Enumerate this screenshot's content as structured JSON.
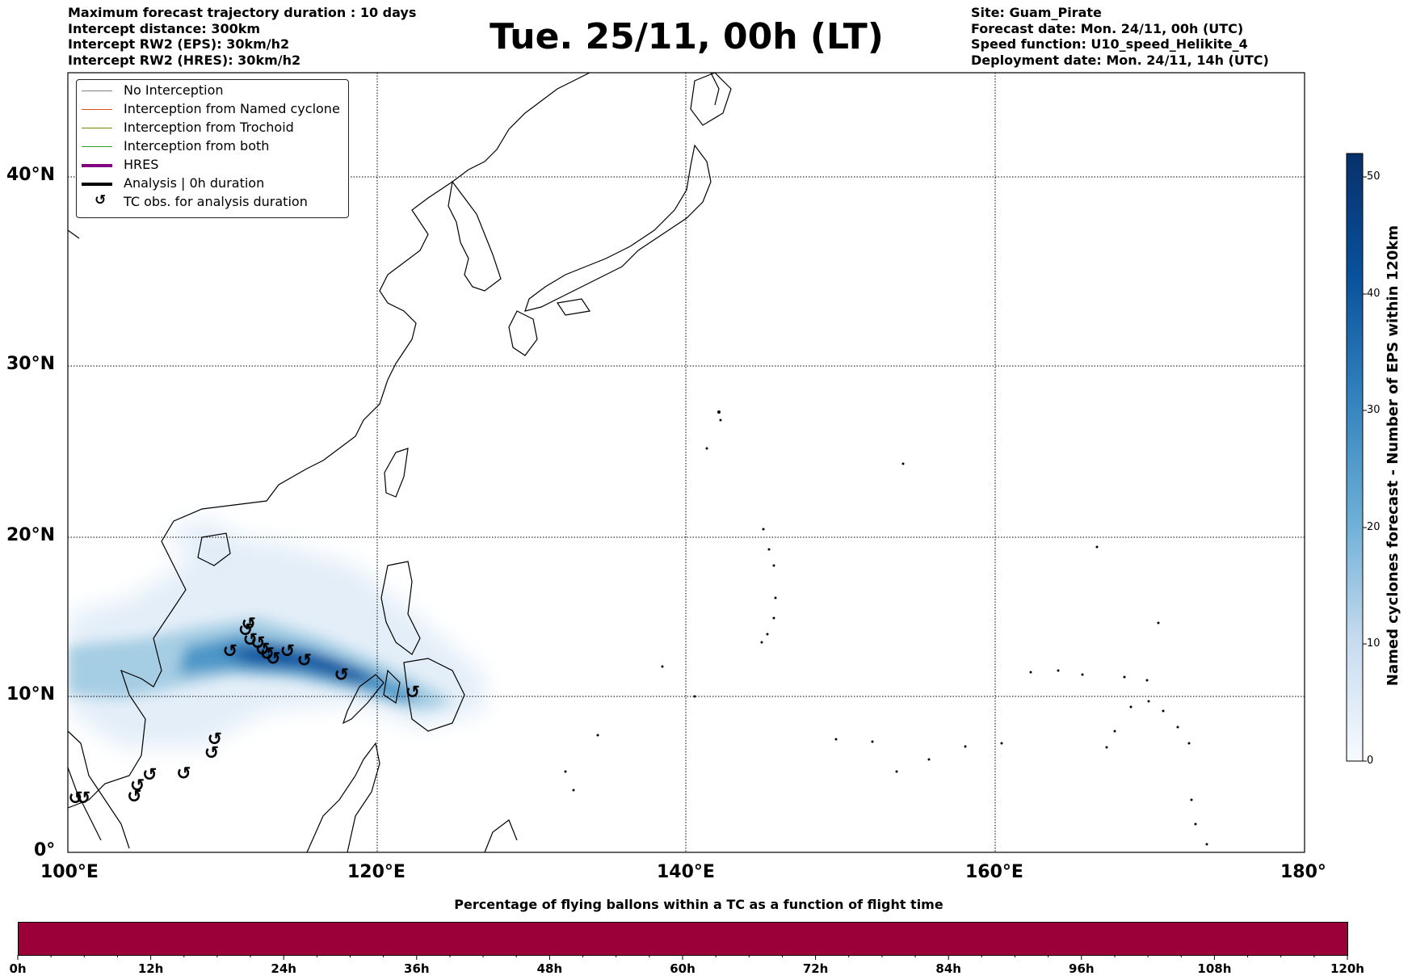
{
  "header_left": [
    "Maximum forecast trajectory duration : 10 days",
    "Intercept distance: 300km",
    "Intercept RW2 (EPS):  30km/h2",
    "Intercept RW2 (HRES): 30km/h2"
  ],
  "title": "Tue. 25/11, 00h (LT)",
  "header_right": [
    "Site: Guam_Pirate",
    "Forecast date: Mon. 24/11, 00h (UTC)",
    "Speed function: U10_speed_Helikite_4",
    "Deployment date: Mon. 24/11, 14h (UTC)"
  ],
  "map": {
    "lat_labels": [
      "40°N",
      "30°N",
      "20°N",
      "10°N",
      "0°"
    ],
    "lon_labels": [
      "100°E",
      "120°E",
      "140°E",
      "160°E",
      "180°"
    ],
    "extent": {
      "lon_min": 100,
      "lon_max": 180,
      "lat_min": 0,
      "lat_max": 46
    }
  },
  "legend": [
    {
      "label": "No Interception",
      "color": "#7f7f7f",
      "style": "thin"
    },
    {
      "label": "Interception from Named cyclone",
      "color": "#e0531f",
      "style": "thin"
    },
    {
      "label": "Interception from Trochoid",
      "color": "#808000",
      "style": "thin"
    },
    {
      "label": "Interception from both",
      "color": "#2ca02c",
      "style": "thin"
    },
    {
      "label": "HRES",
      "color": "#800080",
      "style": "thick"
    },
    {
      "label": "Analysis | 0h duration",
      "color": "#000000",
      "style": "thick"
    },
    {
      "label": "TC obs. for analysis duration",
      "color": "#000000",
      "style": "symbol"
    }
  ],
  "colorbar": {
    "title": "Named cyclones forecast - Number of EPS within 120km",
    "ticks": [
      "0",
      "10",
      "20",
      "30",
      "40",
      "50"
    ],
    "min": 0,
    "max": 52
  },
  "bottom": {
    "title": "Percentage of flying ballons within a TC as a function of flight time",
    "ticks": [
      "0h",
      "12h",
      "24h",
      "36h",
      "48h",
      "60h",
      "72h",
      "84h",
      "96h",
      "108h",
      "120h"
    ],
    "bar_color": "#9b0039"
  },
  "tc_obs": [
    {
      "lon": 110.5,
      "lat": 12.5
    },
    {
      "lon": 111.5,
      "lat": 13.8
    },
    {
      "lon": 111.8,
      "lat": 13.2
    },
    {
      "lon": 112.3,
      "lat": 13.0
    },
    {
      "lon": 112.6,
      "lat": 12.6
    },
    {
      "lon": 112.9,
      "lat": 12.3
    },
    {
      "lon": 113.3,
      "lat": 12.0
    },
    {
      "lon": 114.2,
      "lat": 12.5
    },
    {
      "lon": 115.3,
      "lat": 11.9
    },
    {
      "lon": 117.7,
      "lat": 11.0
    },
    {
      "lon": 122.3,
      "lat": 9.9
    },
    {
      "lon": 111.7,
      "lat": 14.2
    },
    {
      "lon": 109.3,
      "lat": 6.0
    },
    {
      "lon": 109.5,
      "lat": 6.9
    },
    {
      "lon": 107.5,
      "lat": 4.7
    },
    {
      "lon": 105.3,
      "lat": 4.6
    },
    {
      "lon": 104.3,
      "lat": 3.2
    },
    {
      "lon": 104.5,
      "lat": 3.9
    },
    {
      "lon": 100.5,
      "lat": 3.1
    },
    {
      "lon": 101.0,
      "lat": 3.1
    }
  ],
  "colors": {
    "density_light": "#deebf7",
    "density_dark": "#08306b"
  }
}
